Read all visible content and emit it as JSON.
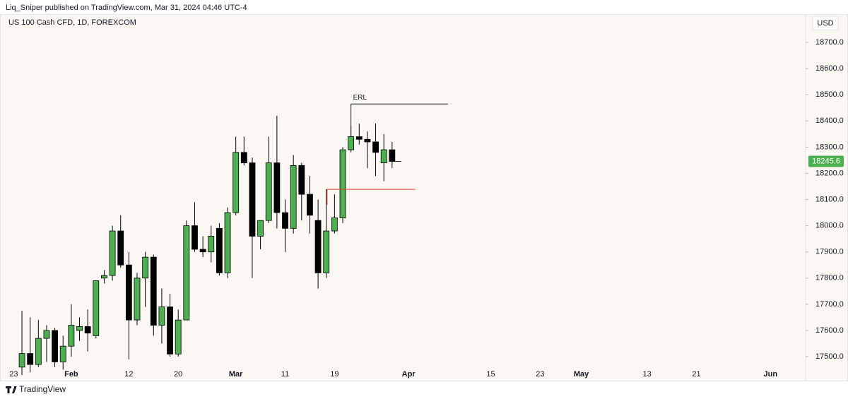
{
  "header": {
    "published": "Liq_Sniper published on TradingView.com, Mar 31, 2024 04:46 UTC-4"
  },
  "footer": {
    "brand": "TradingView"
  },
  "chart_data": {
    "type": "candlestick",
    "title": "US 100 Cash CFD, 1D, FOREXCOM",
    "currency": "USD",
    "up_color": "#4caf50",
    "down_color": "#000000",
    "grid": false,
    "categories": [
      "23",
      null,
      null,
      null,
      null,
      null,
      null,
      "Feb",
      null,
      null,
      null,
      null,
      null,
      null,
      "12",
      null,
      null,
      null,
      null,
      null,
      "20",
      null,
      null,
      null,
      null,
      null,
      null,
      "Mar",
      null,
      null,
      null,
      null,
      null,
      "11",
      null,
      null,
      null,
      null,
      null,
      "19",
      null,
      null,
      null,
      null,
      null,
      null,
      null,
      null,
      "Apr",
      null,
      null,
      null,
      null,
      null,
      null,
      null,
      null,
      null,
      "15",
      null,
      null,
      null,
      null,
      null,
      "23",
      null,
      null,
      null,
      null,
      "May",
      null,
      null,
      null,
      null,
      null,
      null,
      null,
      "13",
      null,
      null,
      null,
      null,
      null,
      "21",
      null,
      null,
      null,
      null,
      null,
      null,
      null,
      null,
      "Jun",
      null,
      null,
      null,
      null
    ],
    "open": [
      null,
      17460,
      17512,
      17470,
      17570,
      17600,
      17480,
      17540,
      17600,
      17615,
      17580,
      17800,
      17810,
      17980,
      17850,
      17640,
      17800,
      17880,
      17620,
      17690,
      17510,
      17640,
      18000,
      17910,
      17900,
      17990,
      17820,
      18050,
      18280,
      18240,
      17960,
      18020,
      18240,
      18050,
      17990,
      18230,
      18120,
      18020,
      17820,
      17980,
      18030,
      18290,
      18340,
      18330,
      18320,
      18240,
      18290,
      null,
      null,
      null,
      null,
      null,
      null,
      null,
      null,
      null,
      null,
      null,
      null,
      null,
      null,
      null,
      null,
      null,
      null,
      null,
      null,
      null,
      null,
      null,
      null,
      null,
      null,
      null,
      null,
      null,
      null,
      null,
      null,
      null,
      null,
      null,
      null,
      null,
      null,
      null,
      null,
      null,
      null,
      null,
      null,
      null,
      null,
      null,
      null,
      null,
      null
    ],
    "high": [
      null,
      17675,
      17650,
      17640,
      17620,
      17610,
      17580,
      17700,
      17650,
      17680,
      17780,
      17830,
      18000,
      18040,
      17900,
      17820,
      17900,
      17890,
      17760,
      17740,
      17680,
      18020,
      18090,
      17960,
      18000,
      18010,
      18070,
      18340,
      18340,
      18260,
      18020,
      18340,
      18420,
      18100,
      18270,
      18240,
      18190,
      18100,
      18140,
      18120,
      18300,
      18380,
      18390,
      18360,
      18390,
      18350,
      18320,
      null,
      null,
      null,
      null,
      null,
      null,
      null,
      null,
      null,
      null,
      null,
      null,
      null,
      null,
      null,
      null,
      null,
      null,
      null,
      null,
      null,
      null,
      null,
      null,
      null,
      null,
      null,
      null,
      null,
      null,
      null,
      null,
      null,
      null,
      null,
      null,
      null,
      null,
      null,
      null,
      null,
      null,
      null,
      null,
      null,
      null,
      null,
      null,
      null,
      null
    ],
    "low": [
      null,
      17430,
      17440,
      17460,
      17480,
      17460,
      17450,
      17500,
      17560,
      17520,
      17570,
      17780,
      17790,
      17840,
      17490,
      17620,
      17690,
      17580,
      17550,
      17500,
      17500,
      17640,
      17900,
      17880,
      17860,
      17810,
      17800,
      18040,
      18230,
      17800,
      17910,
      18010,
      17990,
      17900,
      17970,
      18020,
      17970,
      17760,
      17800,
      17970,
      18010,
      18280,
      18310,
      18220,
      18190,
      18170,
      18220,
      null,
      null,
      null,
      null,
      null,
      null,
      null,
      null,
      null,
      null,
      null,
      null,
      null,
      null,
      null,
      null,
      null,
      null,
      null,
      null,
      null,
      null,
      null,
      null,
      null,
      null,
      null,
      null,
      null,
      null,
      null,
      null,
      null,
      null,
      null,
      null,
      null,
      null,
      null,
      null,
      null,
      null,
      null,
      null,
      null,
      null,
      null,
      null,
      null,
      null
    ],
    "close": [
      null,
      17512,
      17470,
      17570,
      17600,
      17480,
      17540,
      17620,
      17615,
      17590,
      17790,
      17810,
      17980,
      17850,
      17640,
      17800,
      17880,
      17620,
      17690,
      17510,
      17640,
      18000,
      17910,
      17900,
      17960,
      17820,
      18050,
      18280,
      18240,
      17960,
      18020,
      18240,
      18050,
      17990,
      18230,
      18120,
      18040,
      17820,
      17980,
      18030,
      18290,
      18340,
      18330,
      18320,
      18280,
      18290,
      18245.6,
      null,
      null,
      null,
      null,
      null,
      null,
      null,
      null,
      null,
      null,
      null,
      null,
      null,
      null,
      null,
      null,
      null,
      null,
      null,
      null,
      null,
      null,
      null,
      null,
      null,
      null,
      null,
      null,
      null,
      null,
      null,
      null,
      null,
      null,
      null,
      null,
      null,
      null,
      null,
      null,
      null,
      null,
      null,
      null,
      null,
      null,
      null,
      null,
      null,
      null
    ],
    "ylim": [
      17465,
      18808
    ],
    "yticks": [
      {
        "value": 17500,
        "label": "17500.0"
      },
      {
        "value": 17600,
        "label": "17600.0"
      },
      {
        "value": 17700,
        "label": "17700.0"
      },
      {
        "value": 17800,
        "label": "17800.0"
      },
      {
        "value": 17900,
        "label": "17900.0"
      },
      {
        "value": 18000,
        "label": "18000.0"
      },
      {
        "value": 18100,
        "label": "18100.0"
      },
      {
        "value": 18200,
        "label": "18200.0"
      },
      {
        "value": 18300,
        "label": "18300.0"
      },
      {
        "value": 18400,
        "label": "18400.0"
      },
      {
        "value": 18500,
        "label": "18500.0"
      },
      {
        "value": 18600,
        "label": "18600.0"
      },
      {
        "value": 18700,
        "label": "18700.0"
      }
    ],
    "levels": [
      {
        "label": "ERL",
        "value": 18465,
        "color": "#131722"
      },
      {
        "value": 18139,
        "color": "#e53935"
      }
    ]
  }
}
